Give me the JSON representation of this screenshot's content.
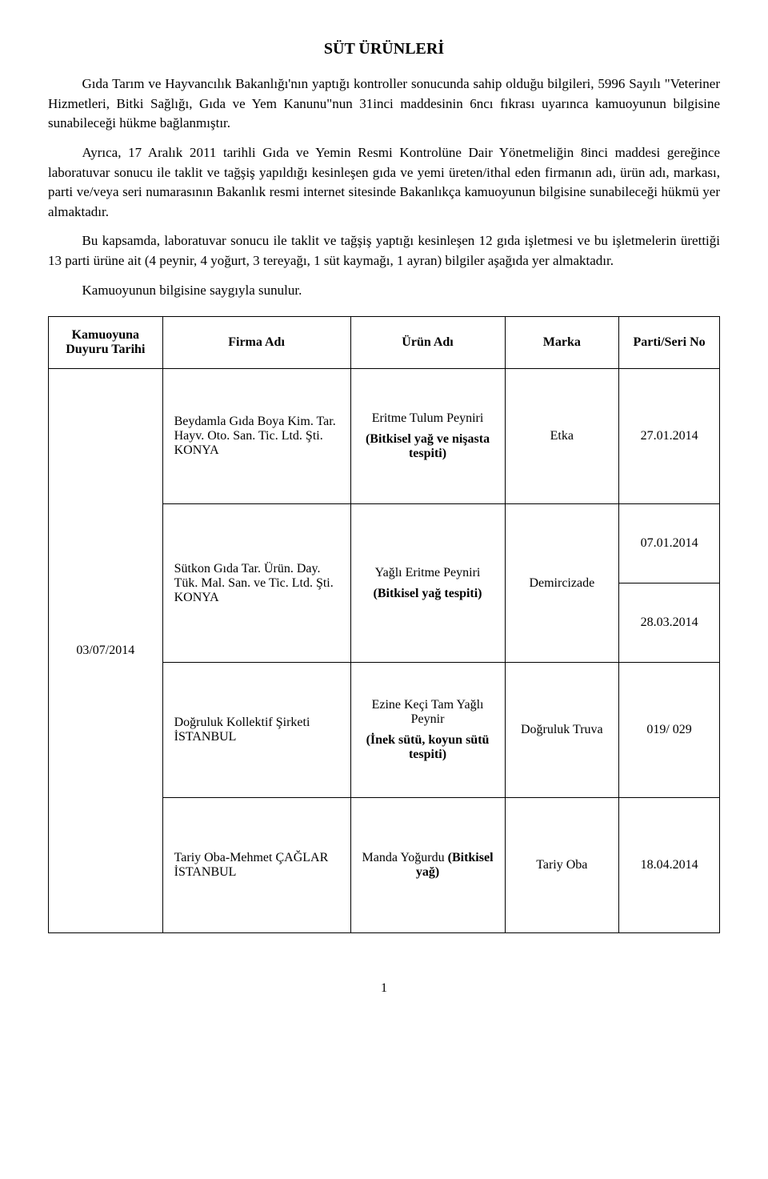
{
  "title": "SÜT ÜRÜNLERİ",
  "paragraphs": {
    "p1": "Gıda Tarım ve Hayvancılık Bakanlığı'nın yaptığı kontroller sonucunda sahip olduğu bilgileri, 5996 Sayılı \"Veteriner Hizmetleri, Bitki Sağlığı, Gıda ve Yem Kanunu\"nun 31inci maddesinin 6ncı fıkrası uyarınca kamuoyunun bilgisine sunabileceği hükme bağlanmıştır.",
    "p2": "Ayrıca, 17 Aralık 2011 tarihli Gıda ve Yemin Resmi Kontrolüne Dair Yönetmeliğin 8inci maddesi gereğince laboratuvar sonucu ile taklit ve tağşiş yapıldığı kesinleşen gıda ve yemi üreten/ithal eden firmanın adı, ürün adı, markası, parti ve/veya seri numarasının Bakanlık resmi internet sitesinde Bakanlıkça kamuoyunun bilgisine sunabileceği hükmü yer almaktadır.",
    "p3": "Bu kapsamda, laboratuvar sonucu ile taklit ve tağşiş yaptığı kesinleşen 12 gıda işletmesi ve bu işletmelerin ürettiği 13 parti ürüne ait (4 peynir, 4 yoğurt, 3 tereyağı, 1 süt kaymağı, 1 ayran) bilgiler aşağıda yer almaktadır.",
    "p4": "Kamuoyunun bilgisine saygıyla sunulur."
  },
  "table": {
    "headers": {
      "col1": "Kamuoyuna Duyuru Tarihi",
      "col2": "Firma Adı",
      "col3": "Ürün Adı",
      "col4": "Marka",
      "col5": "Parti/Seri No"
    },
    "announce_date": "03/07/2014",
    "rows": [
      {
        "firm": "Beydamla Gıda Boya Kim. Tar. Hayv. Oto. San. Tic. Ltd. Şti. KONYA",
        "product_main": "Eritme Tulum Peyniri",
        "product_note": "(Bitkisel yağ ve nişasta tespiti)",
        "brand": "Etka",
        "batch": "27.01.2014"
      },
      {
        "firm": "Sütkon Gıda Tar. Ürün. Day. Tük. Mal. San. ve Tic. Ltd. Şti. KONYA",
        "product_main": "Yağlı Eritme Peyniri",
        "product_note": "(Bitkisel yağ tespiti)",
        "brand": "Demircizade",
        "batch1": "07.01.2014",
        "batch2": "28.03.2014"
      },
      {
        "firm": "Doğruluk Kollektif Şirketi İSTANBUL",
        "product_main": "Ezine Keçi Tam Yağlı Peynir",
        "product_note": "(İnek sütü, koyun sütü tespiti)",
        "brand": "Doğruluk Truva",
        "batch": "019/ 029"
      },
      {
        "firm": "Tariy Oba-Mehmet ÇAĞLAR İSTANBUL",
        "product_main": "Manda Yoğurdu",
        "product_note": "(Bitkisel yağ)",
        "brand": "Tariy Oba",
        "batch": "18.04.2014"
      }
    ]
  },
  "page_number": "1"
}
